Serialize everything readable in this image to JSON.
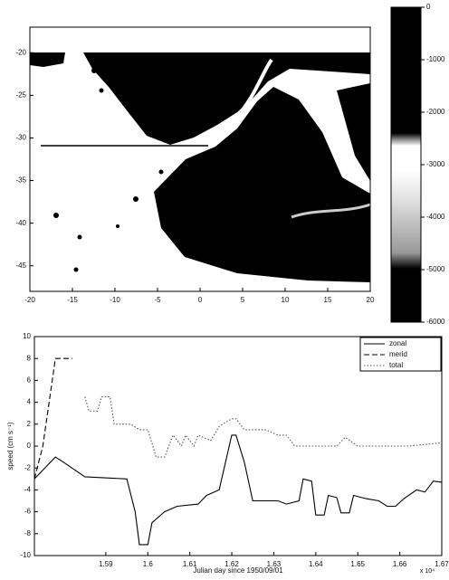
{
  "chart_data": [
    {
      "type": "image",
      "xlim": [
        -20,
        20
      ],
      "xticks": [
        -20,
        -15,
        -10,
        -5,
        0,
        5,
        10,
        15,
        20
      ],
      "ylim": [
        -48,
        -17
      ],
      "yticks": [
        -20,
        -25,
        -30,
        -35,
        -40,
        -45
      ],
      "colorbar": {
        "lim": [
          -6000,
          0
        ],
        "ticks": [
          0,
          -1000,
          -2000,
          -3000,
          -4000,
          -5000,
          -6000
        ]
      }
    },
    {
      "type": "line",
      "xlabel": "Julian day since 1950/09/01",
      "ylabel": "speed (cm s⁻¹)",
      "x_multiplier": "x 10⁴",
      "xlim": [
        1.573,
        1.67
      ],
      "xticks": [
        1.59,
        1.6,
        1.61,
        1.62,
        1.63,
        1.64,
        1.65,
        1.66,
        1.67
      ],
      "ylim": [
        -10,
        10
      ],
      "yticks": [
        -10,
        -8,
        -6,
        -4,
        -2,
        0,
        2,
        4,
        6,
        8,
        10
      ],
      "legend": "upper right",
      "series": [
        {
          "name": "zonal",
          "color": "#000000",
          "linestyle": "solid",
          "x": [
            1.573,
            1.578,
            1.58,
            1.585,
            1.595,
            1.597,
            1.598,
            1.6,
            1.601,
            1.604,
            1.607,
            1.612,
            1.614,
            1.617,
            1.62,
            1.621,
            1.623,
            1.625,
            1.631,
            1.633,
            1.636,
            1.637,
            1.639,
            1.64,
            1.642,
            1.643,
            1.645,
            1.646,
            1.648,
            1.649,
            1.652,
            1.655,
            1.657,
            1.659,
            1.661,
            1.664,
            1.666,
            1.668,
            1.67
          ],
          "values": [
            -3,
            -1,
            -1.5,
            -2.8,
            -3,
            -6,
            -9,
            -9,
            -7,
            -6,
            -5.5,
            -5.3,
            -4.5,
            -4,
            1,
            1,
            -1.5,
            -5,
            -5,
            -5.3,
            -5,
            -3,
            -3.2,
            -6.3,
            -6.3,
            -4.5,
            -4.7,
            -6.1,
            -6.1,
            -4.5,
            -4.8,
            -5,
            -5.5,
            -5.5,
            -4.8,
            -4,
            -4.2,
            -3.2,
            -3.3
          ]
        },
        {
          "name": "merid",
          "color": "#000000",
          "linestyle": "dashed",
          "x": [
            1.573,
            1.575,
            1.578,
            1.582
          ],
          "values": [
            -3,
            0,
            8,
            8
          ]
        },
        {
          "name": "total",
          "color": "#555555",
          "linestyle": "dotted",
          "x": [
            1.585,
            1.586,
            1.588,
            1.589,
            1.591,
            1.592,
            1.596,
            1.598,
            1.6,
            1.602,
            1.604,
            1.606,
            1.608,
            1.609,
            1.611,
            1.612,
            1.615,
            1.617,
            1.62,
            1.621,
            1.623,
            1.628,
            1.631,
            1.633,
            1.635,
            1.645,
            1.647,
            1.65,
            1.662,
            1.67
          ],
          "values": [
            4.5,
            3.2,
            3.2,
            4.5,
            4.5,
            2,
            2,
            1.5,
            1.5,
            -1,
            -1,
            1,
            0,
            1,
            0,
            1,
            0.5,
            1.8,
            2.5,
            2.5,
            1.5,
            1.5,
            1,
            1,
            0,
            0,
            0.8,
            0,
            0,
            0.3
          ]
        }
      ]
    }
  ]
}
